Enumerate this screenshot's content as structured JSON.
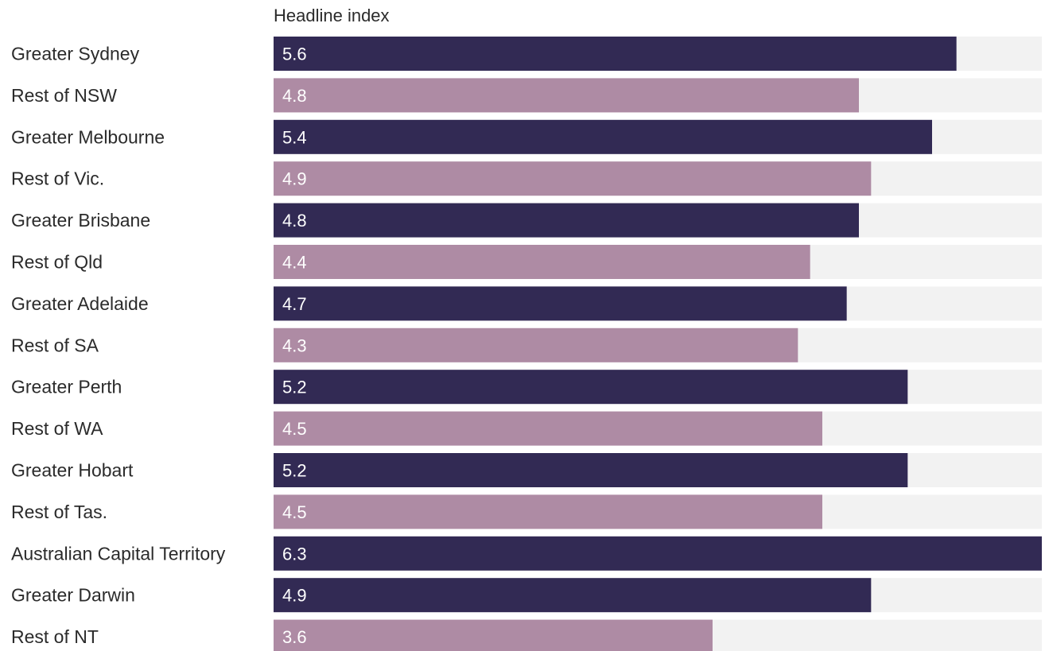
{
  "chart_data": {
    "type": "bar",
    "orientation": "horizontal",
    "column_header": "Headline index",
    "categories": [
      "Greater Sydney",
      "Rest of NSW",
      "Greater Melbourne",
      "Rest of Vic.",
      "Greater Brisbane",
      "Rest of Qld",
      "Greater Adelaide",
      "Rest of SA",
      "Greater Perth",
      "Rest of WA",
      "Greater Hobart",
      "Rest of Tas.",
      "Australian Capital Territory",
      "Greater Darwin",
      "Rest of NT"
    ],
    "values": [
      5.6,
      4.8,
      5.4,
      4.9,
      4.8,
      4.4,
      4.7,
      4.3,
      5.2,
      4.5,
      5.2,
      4.5,
      6.3,
      4.9,
      3.6
    ],
    "value_labels": [
      "5.6",
      "4.8",
      "5.4",
      "4.9",
      "4.8",
      "4.4",
      "4.7",
      "4.3",
      "5.2",
      "4.5",
      "5.2",
      "4.5",
      "6.3",
      "4.9",
      "3.6"
    ],
    "xlim": [
      0,
      6.3
    ],
    "grid": false,
    "legend": "none",
    "colors": {
      "capital": "#322a54",
      "rest": "#ae8ba4",
      "track": "#f2f2f2",
      "value_text": "#ffffff",
      "label_text": "#2b2b2b"
    },
    "bar_color_pattern": [
      "capital",
      "rest",
      "capital",
      "rest",
      "capital",
      "rest",
      "capital",
      "rest",
      "capital",
      "rest",
      "capital",
      "rest",
      "capital",
      "capital",
      "rest"
    ]
  }
}
